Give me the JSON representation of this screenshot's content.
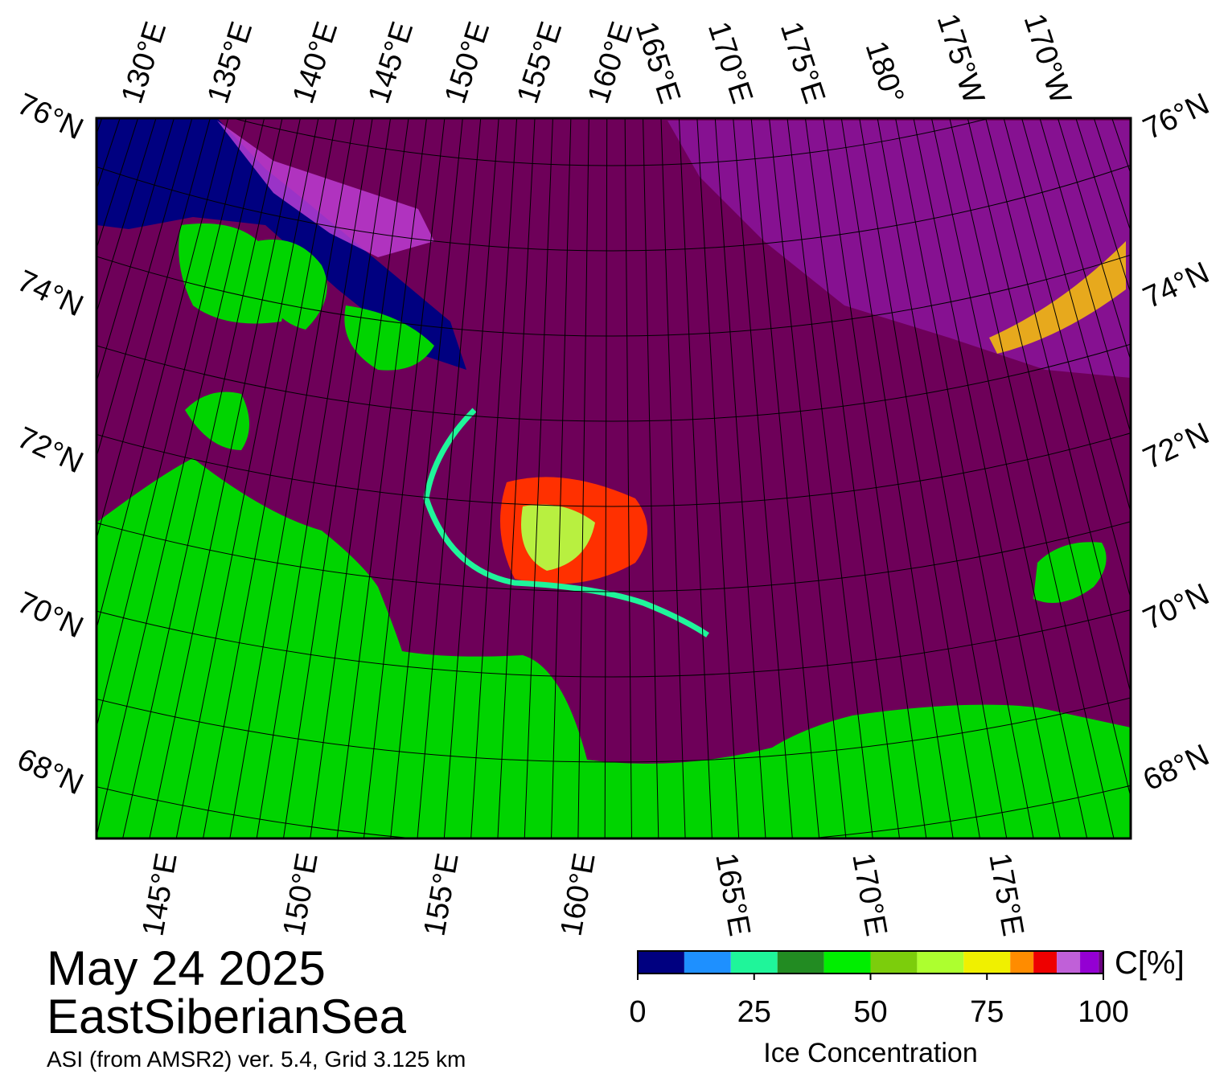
{
  "map": {
    "date": "May 24 2025",
    "region": "EastSiberianSea",
    "source": "ASI (from AMSR2) ver. 5.4,  Grid 3.125 km",
    "top_lon_labels": [
      "130°E",
      "135°E",
      "140°E",
      "145°E",
      "150°E",
      "155°E",
      "160°E",
      "165°E",
      "170°E",
      "175°E",
      "180°",
      "175°W",
      "170°W"
    ],
    "bottom_lon_labels": [
      "145°E",
      "150°E",
      "155°E",
      "160°E",
      "165°E",
      "170°E",
      "175°E"
    ],
    "left_lat_labels": [
      "76°N",
      "74°N",
      "72°N",
      "70°N",
      "68°N"
    ],
    "right_lat_labels": [
      "76°N",
      "74°N",
      "72°N",
      "70°N",
      "68°N"
    ]
  },
  "colorbar": {
    "unit": "C[%]",
    "label": "Ice Concentration",
    "lim": [
      0,
      100
    ],
    "ticks": [
      0,
      25,
      50,
      75,
      100
    ],
    "bins": [
      0,
      10,
      20,
      30,
      40,
      50,
      60,
      70,
      80,
      85,
      90,
      95,
      99,
      100
    ],
    "colors": [
      "#000080",
      "#1e90ff",
      "#1ff59a",
      "#228b22",
      "#00ee00",
      "#7ccd0c",
      "#adff2f",
      "#f0f000",
      "#ff8c00",
      "#ee0000",
      "#c060d8",
      "#9400d3",
      "#6a0080"
    ]
  }
}
